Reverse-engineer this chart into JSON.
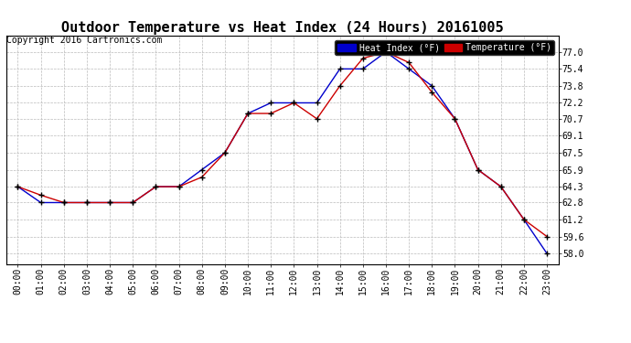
{
  "title": "Outdoor Temperature vs Heat Index (24 Hours) 20161005",
  "copyright": "Copyright 2016 Cartronics.com",
  "legend_heat_index": "Heat Index (°F)",
  "legend_temperature": "Temperature (°F)",
  "x_labels": [
    "00:00",
    "01:00",
    "02:00",
    "03:00",
    "04:00",
    "05:00",
    "06:00",
    "07:00",
    "08:00",
    "09:00",
    "10:00",
    "11:00",
    "12:00",
    "13:00",
    "14:00",
    "15:00",
    "16:00",
    "17:00",
    "18:00",
    "19:00",
    "20:00",
    "21:00",
    "22:00",
    "23:00"
  ],
  "heat_index": [
    64.3,
    62.8,
    62.8,
    62.8,
    62.8,
    62.8,
    64.3,
    64.3,
    65.9,
    67.5,
    71.2,
    72.2,
    72.2,
    72.2,
    75.4,
    75.4,
    77.0,
    75.4,
    73.8,
    70.7,
    65.9,
    64.3,
    61.2,
    58.0
  ],
  "temperature": [
    64.3,
    63.5,
    62.8,
    62.8,
    62.8,
    62.8,
    64.3,
    64.3,
    65.2,
    67.5,
    71.2,
    71.2,
    72.2,
    70.7,
    73.8,
    76.4,
    77.0,
    76.0,
    73.2,
    70.7,
    65.9,
    64.3,
    61.2,
    59.6
  ],
  "ylim_min": 57.0,
  "ylim_max": 78.5,
  "yticks": [
    58.0,
    59.6,
    61.2,
    62.8,
    64.3,
    65.9,
    67.5,
    69.1,
    70.7,
    72.2,
    73.8,
    75.4,
    77.0
  ],
  "heat_index_color": "#0000cc",
  "temperature_color": "#cc0000",
  "marker_color": "#000000",
  "background_color": "#ffffff",
  "grid_color": "#bbbbbb",
  "title_fontsize": 11,
  "tick_fontsize": 7,
  "copyright_fontsize": 7
}
